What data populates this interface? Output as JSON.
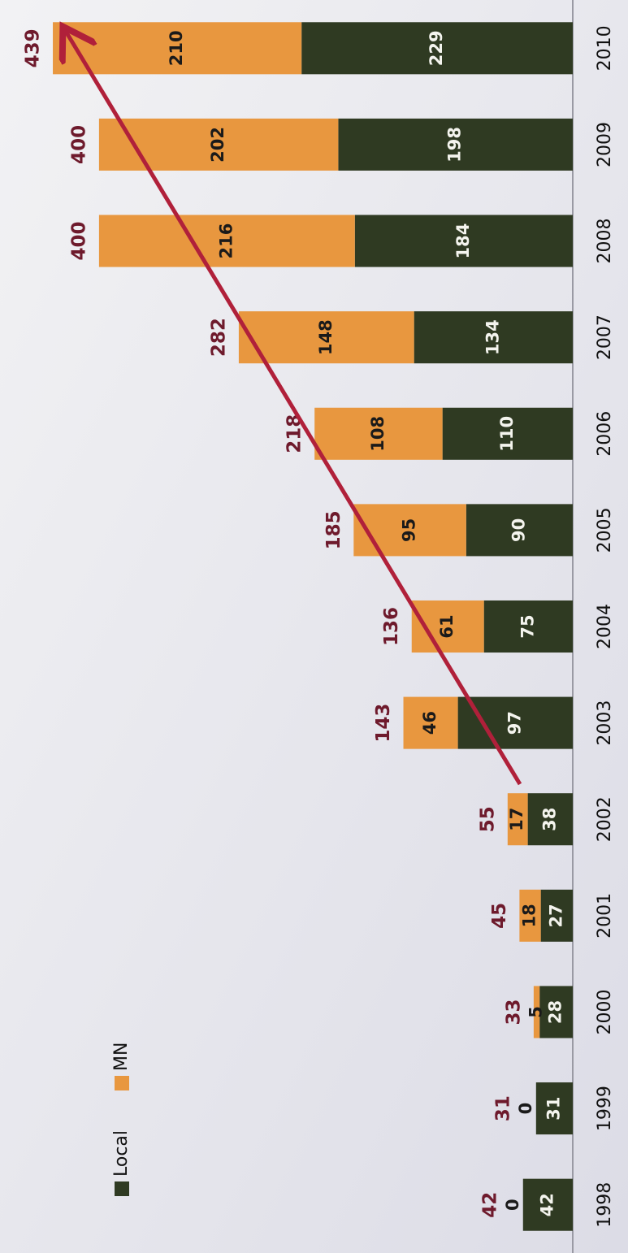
{
  "chart_data": {
    "type": "bar",
    "stacked": true,
    "categories": [
      "1998",
      "1999",
      "2000",
      "2001",
      "2002",
      "2003",
      "2004",
      "2005",
      "2006",
      "2007",
      "2008",
      "2009",
      "2010"
    ],
    "series": [
      {
        "name": "Local",
        "color": "#2f3a22",
        "values": [
          42,
          31,
          28,
          27,
          38,
          97,
          75,
          90,
          110,
          134,
          184,
          198,
          229
        ]
      },
      {
        "name": "MN",
        "color": "#e8973f",
        "values": [
          0,
          0,
          5,
          18,
          17,
          46,
          61,
          95,
          108,
          148,
          216,
          202,
          210
        ]
      }
    ],
    "totals": [
      42,
      31,
      33,
      45,
      55,
      143,
      136,
      185,
      218,
      282,
      400,
      400,
      439
    ],
    "ylim": [
      0,
      450
    ]
  }
}
